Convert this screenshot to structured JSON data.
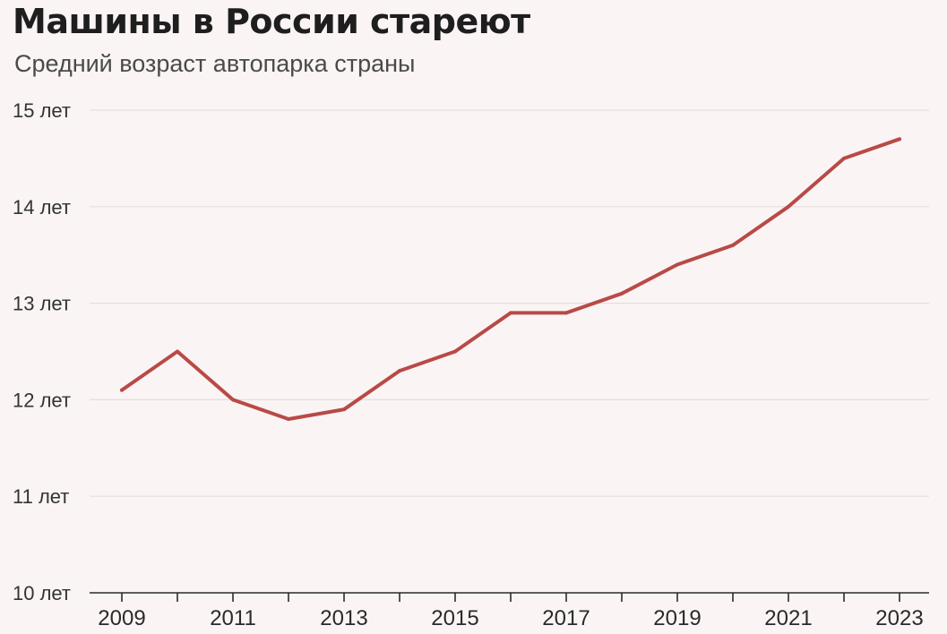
{
  "chart_data": {
    "type": "line",
    "title": "Машины в России стареют",
    "subtitle": "Средний возраст автопарка страны",
    "xlabel": "",
    "ylabel": "",
    "x": [
      2009,
      2010,
      2011,
      2012,
      2013,
      2014,
      2015,
      2016,
      2017,
      2018,
      2019,
      2020,
      2021,
      2022,
      2023
    ],
    "series": [
      {
        "values": [
          12.1,
          12.5,
          12.0,
          11.8,
          11.9,
          12.3,
          12.5,
          12.9,
          12.9,
          13.1,
          13.4,
          13.6,
          14.0,
          14.5,
          14.7
        ]
      }
    ],
    "ylim": [
      10,
      15
    ],
    "yticks": [
      10,
      11,
      12,
      13,
      14,
      15
    ],
    "ytick_labels": [
      "10 лет",
      "11 лет",
      "12 лет",
      "13 лет",
      "14 лет",
      "15 лет"
    ],
    "xticks_labeled": [
      2009,
      2011,
      2013,
      2015,
      2017,
      2019,
      2021,
      2023
    ],
    "grid": true,
    "legend": "none",
    "colors": {
      "line": "#b84a47",
      "background": "#fbf4f4",
      "grid": "#e6dede"
    }
  }
}
